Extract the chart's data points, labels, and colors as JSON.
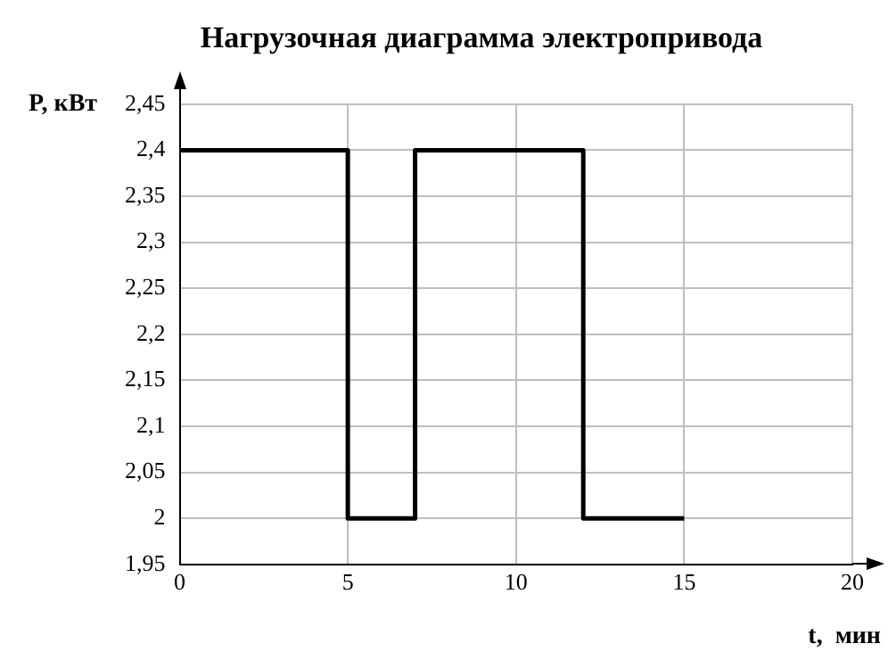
{
  "chart_data": {
    "type": "step",
    "title": "Нагрузочная диаграмма электропривода",
    "xlabel": "t,  мин",
    "ylabel": "P, кВт",
    "x": [
      0,
      5,
      7,
      12,
      15
    ],
    "series": [
      {
        "color": "#000000",
        "values": [
          2.4,
          2,
          2.4,
          2,
          2
        ]
      }
    ],
    "xlim": [
      0,
      20
    ],
    "xticks": [
      0,
      5,
      10,
      15,
      20
    ],
    "ylim": [
      1.95,
      2.45
    ],
    "yticks": [
      {
        "value": 1.95,
        "label": "1,95"
      },
      {
        "value": 2,
        "label": "2"
      },
      {
        "value": 2.05,
        "label": "2,05"
      },
      {
        "value": 2.1,
        "label": "2,1"
      },
      {
        "value": 2.15,
        "label": "2,15"
      },
      {
        "value": 2.2,
        "label": "2,2"
      },
      {
        "value": 2.25,
        "label": "2,25"
      },
      {
        "value": 2.3,
        "label": "2,3"
      },
      {
        "value": 2.35,
        "label": "2,35"
      },
      {
        "value": 2.4,
        "label": "2,4"
      },
      {
        "value": 2.45,
        "label": "2,45"
      }
    ],
    "grid": true
  }
}
